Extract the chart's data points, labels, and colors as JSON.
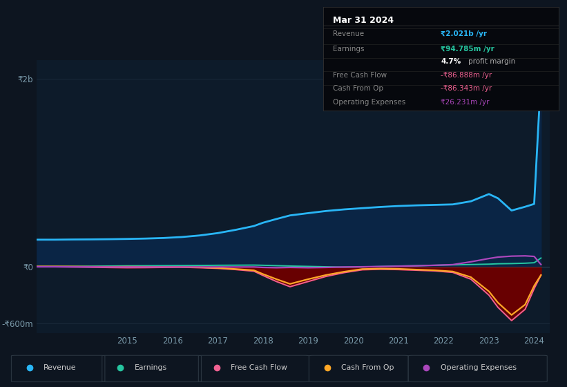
{
  "bg_color": "#0d1520",
  "plot_bg_color": "#0d1b2a",
  "grid_color": "#1a2a3a",
  "years": [
    2013.0,
    2013.4,
    2013.8,
    2014.2,
    2014.6,
    2015.0,
    2015.4,
    2015.8,
    2016.2,
    2016.6,
    2017.0,
    2017.4,
    2017.8,
    2018.0,
    2018.3,
    2018.6,
    2019.0,
    2019.4,
    2019.8,
    2020.2,
    2020.6,
    2021.0,
    2021.4,
    2021.8,
    2022.2,
    2022.6,
    2023.0,
    2023.2,
    2023.5,
    2023.8,
    2024.0,
    2024.15
  ],
  "revenue": [
    290,
    290,
    292,
    293,
    295,
    298,
    302,
    308,
    318,
    335,
    360,
    395,
    435,
    470,
    510,
    548,
    572,
    595,
    612,
    625,
    638,
    648,
    655,
    660,
    665,
    698,
    775,
    730,
    600,
    640,
    670,
    2021
  ],
  "earnings": [
    5,
    5,
    6,
    8,
    10,
    12,
    13,
    14,
    15,
    16,
    18,
    19,
    20,
    18,
    14,
    10,
    6,
    2,
    -2,
    0,
    5,
    10,
    14,
    18,
    22,
    26,
    30,
    34,
    36,
    40,
    45,
    95
  ],
  "free_cash_flow": [
    2,
    2,
    0,
    -3,
    -6,
    -8,
    -7,
    -5,
    -3,
    -8,
    -15,
    -28,
    -45,
    -90,
    -155,
    -210,
    -155,
    -100,
    -60,
    -30,
    -25,
    -28,
    -35,
    -42,
    -58,
    -130,
    -300,
    -430,
    -570,
    -450,
    -230,
    -87
  ],
  "cash_from_op": [
    6,
    6,
    5,
    3,
    2,
    3,
    2,
    1,
    0,
    -3,
    -10,
    -22,
    -35,
    -75,
    -130,
    -180,
    -130,
    -85,
    -50,
    -22,
    -18,
    -20,
    -28,
    -35,
    -48,
    -108,
    -260,
    -380,
    -510,
    -400,
    -200,
    -86
  ],
  "operating_expenses": [
    2,
    2,
    1,
    1,
    0,
    0,
    0,
    0,
    0,
    0,
    0,
    0,
    0,
    -5,
    -8,
    -5,
    -8,
    -5,
    0,
    2,
    5,
    8,
    12,
    18,
    25,
    55,
    90,
    105,
    115,
    118,
    112,
    26
  ],
  "ylim": [
    -700,
    2200
  ],
  "ytick_positions": [
    -600,
    0,
    2000
  ],
  "ytick_labels": [
    "-₹600m",
    "₹0",
    "₹2b"
  ],
  "xtick_positions": [
    2015,
    2016,
    2017,
    2018,
    2019,
    2020,
    2021,
    2022,
    2023,
    2024
  ],
  "revenue_color": "#29b6f6",
  "earnings_color": "#26c6a0",
  "fcf_color": "#f06292",
  "cashop_color": "#ffa726",
  "opex_color": "#ab47bc",
  "revenue_fill_color": "#0a2545",
  "negative_fill_color": "#6b0000",
  "info_box_bg": "#06080d",
  "info_box_border": "#333333",
  "info_title": "Mar 31 2024",
  "info_rows": [
    {
      "label": "Revenue",
      "value": "₹2.021b /yr",
      "vcolor": "#29b6f6",
      "bold": true,
      "sep_above": true
    },
    {
      "label": "Earnings",
      "value": "₹94.785m /yr",
      "vcolor": "#26c6a0",
      "bold": true,
      "sep_above": true
    },
    {
      "label": "",
      "value": "",
      "vcolor": "mixed",
      "bold": false,
      "sep_above": false
    },
    {
      "label": "Free Cash Flow",
      "value": "-₹86.888m /yr",
      "vcolor": "#f06292",
      "bold": false,
      "sep_above": true
    },
    {
      "label": "Cash From Op",
      "value": "-₹86.343m /yr",
      "vcolor": "#f06292",
      "bold": false,
      "sep_above": true
    },
    {
      "label": "Operating Expenses",
      "value": "₹26.231m /yr",
      "vcolor": "#ab47bc",
      "bold": false,
      "sep_above": true
    }
  ],
  "legend_items": [
    {
      "label": "Revenue",
      "color": "#29b6f6"
    },
    {
      "label": "Earnings",
      "color": "#26c6a0"
    },
    {
      "label": "Free Cash Flow",
      "color": "#f06292"
    },
    {
      "label": "Cash From Op",
      "color": "#ffa726"
    },
    {
      "label": "Operating Expenses",
      "color": "#ab47bc"
    }
  ]
}
